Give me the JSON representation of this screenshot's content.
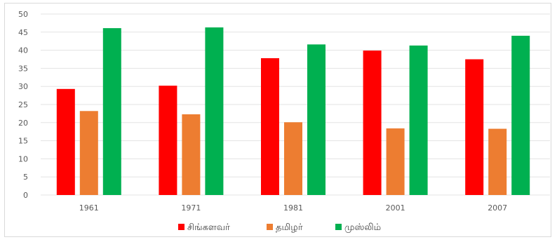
{
  "chart_data": {
    "type": "bar",
    "categories": [
      "1961",
      "1971",
      "1981",
      "2001",
      "2007"
    ],
    "series": [
      {
        "name": "சிங்களவர்",
        "color": "#ff0000",
        "values": [
          29.3,
          30.2,
          37.8,
          39.9,
          37.5
        ]
      },
      {
        "name": "தமிழர்",
        "color": "#ed7d31",
        "values": [
          23.2,
          22.3,
          20.1,
          18.4,
          18.3
        ]
      },
      {
        "name": "முஸ்லிம்",
        "color": "#00b050",
        "values": [
          46.1,
          46.3,
          41.6,
          41.3,
          44.0
        ]
      }
    ],
    "ylim": [
      0,
      50
    ],
    "yticks": [
      "0",
      "5",
      "10",
      "15",
      "20",
      "25",
      "30",
      "35",
      "40",
      "45",
      "50"
    ],
    "grid": true,
    "legend_position": "bottom"
  }
}
